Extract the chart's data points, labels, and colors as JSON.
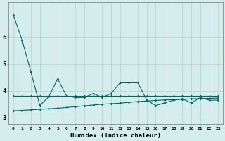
{
  "xlabel": "Humidex (Indice chaleur)",
  "background_color": "#d4eeee",
  "line_color": "#006666",
  "x": [
    0,
    1,
    2,
    3,
    4,
    5,
    6,
    7,
    8,
    9,
    10,
    11,
    12,
    13,
    14,
    15,
    16,
    17,
    18,
    19,
    20,
    21,
    22,
    23
  ],
  "line_main": [
    6.85,
    5.9,
    4.7,
    3.45,
    3.78,
    4.45,
    3.8,
    3.75,
    3.75,
    3.9,
    3.75,
    3.9,
    4.3,
    4.3,
    4.3,
    3.65,
    3.45,
    3.55,
    3.65,
    3.7,
    3.55,
    3.75,
    3.65,
    3.65
  ],
  "line_flat1": [
    3.8,
    3.8,
    3.8,
    3.8,
    3.8,
    3.8,
    3.8,
    3.8,
    3.8,
    3.8,
    3.8,
    3.8,
    3.8,
    3.8,
    3.8,
    3.8,
    3.8,
    3.8,
    3.8,
    3.8,
    3.8,
    3.8,
    3.8,
    3.8
  ],
  "line_flat2": [
    3.25,
    3.27,
    3.29,
    3.31,
    3.33,
    3.35,
    3.38,
    3.41,
    3.44,
    3.47,
    3.5,
    3.52,
    3.54,
    3.57,
    3.6,
    3.62,
    3.64,
    3.66,
    3.67,
    3.68,
    3.7,
    3.71,
    3.72,
    3.73
  ],
  "ylim": [
    2.75,
    7.3
  ],
  "yticks": [
    3,
    4,
    5,
    6
  ],
  "grid_color": "#c8c8c8",
  "figsize": [
    3.2,
    2.0
  ],
  "dpi": 100
}
